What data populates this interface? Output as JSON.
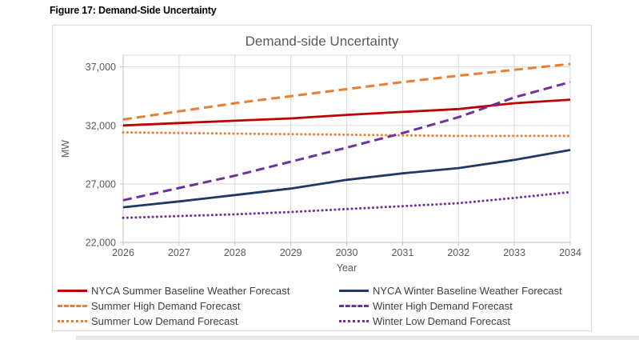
{
  "figure": {
    "caption": "Figure 17: Demand-Side Uncertainty"
  },
  "chart_data": {
    "type": "line",
    "title": "Demand-side Uncertainty",
    "xlabel": "Year",
    "ylabel": "MW",
    "x": [
      2026,
      2027,
      2028,
      2029,
      2030,
      2031,
      2032,
      2033,
      2034
    ],
    "ylim": [
      22000,
      38000
    ],
    "yticks": [
      {
        "value": 22000,
        "label": "22,000"
      },
      {
        "value": 27000,
        "label": "27,000"
      },
      {
        "value": 32000,
        "label": "32,000"
      },
      {
        "value": 37000,
        "label": "37,000"
      }
    ],
    "grid": true,
    "legend_position": "bottom",
    "series": [
      {
        "name": "NYCA Summer Baseline Weather Forecast",
        "color": "#C00000",
        "line_style": "solid",
        "values": [
          32000,
          32200,
          32400,
          32600,
          32900,
          33150,
          33400,
          33900,
          34200
        ]
      },
      {
        "name": "NYCA Winter Baseline Weather Forecast",
        "color": "#1F3864",
        "line_style": "solid",
        "values": [
          25000,
          25500,
          26050,
          26600,
          27350,
          27900,
          28350,
          29050,
          29900
        ]
      },
      {
        "name": "Summer High Demand Forecast",
        "color": "#ED7D31",
        "line_style": "dashed",
        "values": [
          32500,
          33200,
          33900,
          34500,
          35100,
          35700,
          36250,
          36750,
          37250
        ]
      },
      {
        "name": "Winter High Demand Forecast",
        "color": "#7030A0",
        "line_style": "dashed",
        "values": [
          25600,
          26650,
          27700,
          28900,
          30100,
          31350,
          32700,
          34400,
          35700
        ]
      },
      {
        "name": "Summer Low Demand Forecast",
        "color": "#ED7D31",
        "line_style": "dotted",
        "values": [
          31400,
          31350,
          31300,
          31250,
          31200,
          31150,
          31100,
          31100,
          31100
        ]
      },
      {
        "name": "Winter Low Demand Forecast",
        "color": "#7030A0",
        "line_style": "dotted",
        "values": [
          24100,
          24250,
          24400,
          24600,
          24850,
          25100,
          25350,
          25800,
          26300
        ]
      }
    ],
    "style": {
      "grid_color": "#d9d9d9",
      "axis_color": "#bfbfbf",
      "tick_color": "#595959",
      "title_color": "#595959",
      "legend_text_color": "#3f3f3f"
    }
  }
}
